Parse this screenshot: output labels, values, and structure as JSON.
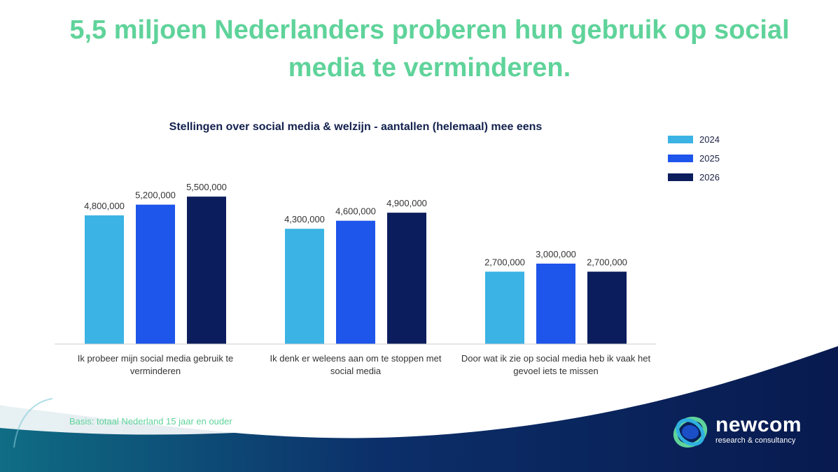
{
  "headline": "5,5 miljoen Nederlanders proberen hun gebruik op social media te verminderen.",
  "footnote": "Basis: totaal Nederland 15 jaar en ouder",
  "logo": {
    "name": "newcom",
    "tagline": "research & consultancy"
  },
  "colors": {
    "accent_green": "#5fd39a",
    "navy": "#0b1f5c",
    "swoosh_teal": "#0f5f78"
  },
  "chart_data": {
    "type": "bar",
    "title": "Stellingen over social media & welzijn - aantallen (helemaal) mee eens",
    "categories": [
      [
        "Ik probeer mijn social media gebruik te",
        "verminderen"
      ],
      [
        "Ik denk er weleens aan om te stoppen met",
        "social media"
      ],
      [
        "Door wat ik zie op social media heb ik vaak het",
        "gevoel iets te missen"
      ]
    ],
    "series": [
      {
        "name": "2024",
        "color": "#3bb3e4",
        "values": [
          4800000,
          4300000,
          2700000
        ]
      },
      {
        "name": "2025",
        "color": "#1e55ea",
        "values": [
          5200000,
          4600000,
          3000000
        ]
      },
      {
        "name": "2026",
        "color": "#0c1d5e",
        "values": [
          5500000,
          4900000,
          2700000
        ]
      }
    ],
    "value_labels": [
      [
        "4,800,000",
        "4,300,000",
        "2,700,000"
      ],
      [
        "5,200,000",
        "4,600,000",
        "3,000,000"
      ],
      [
        "5,500,000",
        "4,900,000",
        "2,700,000"
      ]
    ],
    "ylim": [
      0,
      6000000
    ],
    "legend_position": "top-right",
    "grid": false
  }
}
